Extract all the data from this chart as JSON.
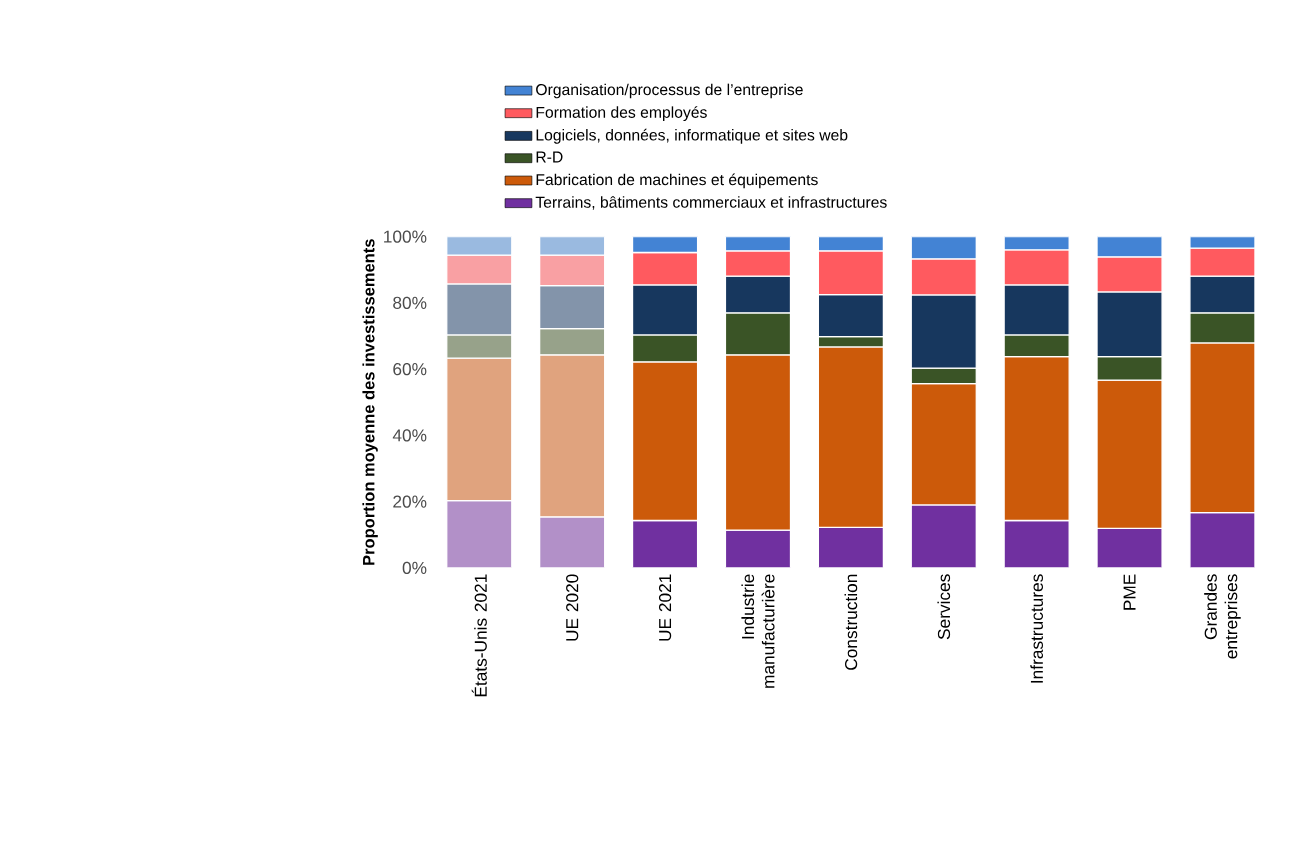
{
  "chart_data": {
    "type": "bar",
    "stacked": true,
    "legend": "top",
    "ylabel": "Proportion moyenne des investissements",
    "categories": [
      "États-Unis 2021",
      "UE 2020",
      "UE 2021",
      "Industrie manufacturière",
      "Construction",
      "Services",
      "Infrastructures",
      "PME",
      "Grandes entreprises"
    ],
    "ylim": [
      0,
      100
    ],
    "yticks": [
      {
        "value": 0,
        "label": "0%"
      },
      {
        "value": 20,
        "label": "20%"
      },
      {
        "value": 40,
        "label": "40%"
      },
      {
        "value": 60,
        "label": "60%"
      },
      {
        "value": 80,
        "label": "80%"
      },
      {
        "value": 100,
        "label": "100%"
      }
    ],
    "series": [
      {
        "name": "Terrains, bâtiments commerciaux et infrastructures",
        "color": "#7030a0",
        "colors": [
          "#b290c8",
          "#b290c8",
          "#7030a0",
          "#7030a0",
          "#7030a0",
          "#7030a0",
          "#7030a0",
          "#7030a0",
          "#7030a0"
        ],
        "values": [
          20.3,
          15.4,
          14.3,
          11.4,
          12.2,
          19.0,
          14.3,
          11.9,
          16.7
        ]
      },
      {
        "name": "Fabrication de machines et équipements",
        "color": "#cc5a0a",
        "colors": [
          "#e0a37e",
          "#e0a37e",
          "#cc5a0a",
          "#cc5a0a",
          "#cc5a0a",
          "#cc5a0a",
          "#cc5a0a",
          "#cc5a0a",
          "#cc5a0a"
        ],
        "values": [
          43.0,
          48.9,
          47.9,
          52.9,
          54.5,
          36.6,
          49.5,
          44.8,
          51.2
        ]
      },
      {
        "name": "R-D",
        "color": "#3a5426",
        "colors": [
          "#97a28a",
          "#97a28a",
          "#3a5426",
          "#3a5426",
          "#3a5426",
          "#3a5426",
          "#3a5426",
          "#3a5426",
          "#3a5426"
        ],
        "values": [
          7.0,
          7.9,
          8.1,
          12.7,
          3.1,
          4.7,
          6.5,
          7.1,
          9.1
        ]
      },
      {
        "name": "Logiciels, données, informatique et sites web",
        "color": "#17375e",
        "colors": [
          "#8394aa",
          "#8394aa",
          "#17375e",
          "#17375e",
          "#17375e",
          "#17375e",
          "#17375e",
          "#17375e",
          "#17375e"
        ],
        "values": [
          15.4,
          13.0,
          15.1,
          11.1,
          12.7,
          22.1,
          15.1,
          19.5,
          11.1
        ]
      },
      {
        "name": "Formation des employés",
        "color": "#ff5a5f",
        "colors": [
          "#f9a0a3",
          "#f9a0a3",
          "#ff5a5f",
          "#ff5a5f",
          "#ff5a5f",
          "#ff5a5f",
          "#ff5a5f",
          "#ff5a5f",
          "#ff5a5f"
        ],
        "values": [
          8.7,
          9.2,
          9.8,
          7.6,
          13.2,
          10.9,
          10.6,
          10.6,
          8.4
        ]
      },
      {
        "name": "Organisation/processus de l’entreprise",
        "color": "#4383d4",
        "colors": [
          "#9abae0",
          "#9abae0",
          "#4383d4",
          "#4383d4",
          "#4383d4",
          "#4383d4",
          "#4383d4",
          "#4383d4",
          "#4383d4"
        ],
        "values": [
          5.6,
          5.6,
          4.8,
          4.3,
          4.3,
          6.7,
          4.0,
          6.1,
          3.5
        ]
      }
    ]
  }
}
